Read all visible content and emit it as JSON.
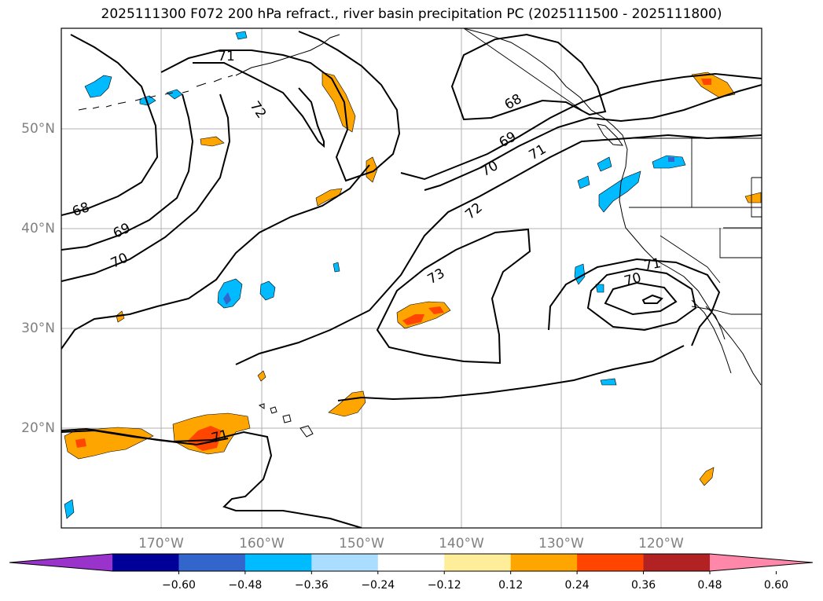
{
  "title": "2025111300 F072 200 hPa refract., river basin precipitation PC (2025111500 - 2025111800)",
  "latitude_labels": [
    "50°N",
    "40°N",
    "30°N",
    "20°N"
  ],
  "longitude_labels": [
    "170°W",
    "160°W",
    "150°W",
    "140°W",
    "130°W",
    "120°W"
  ],
  "contour_labels": [
    "71",
    "72",
    "68",
    "69",
    "70",
    "71",
    "68",
    "69",
    "70",
    "72",
    "73",
    "70",
    "71",
    "71"
  ],
  "colorbar": {
    "tick_labels": [
      "−0.60",
      "−0.48",
      "−0.36",
      "−0.24",
      "−0.12",
      "0.12",
      "0.24",
      "0.36",
      "0.48",
      "0.60"
    ],
    "colors": [
      "#9933cc",
      "#000099",
      "#3366cc",
      "#00bbff",
      "#aaddff",
      "#ffffff",
      "#ffee99",
      "#ffa500",
      "#ff4500",
      "#b22222",
      "#ff88aa"
    ]
  }
}
